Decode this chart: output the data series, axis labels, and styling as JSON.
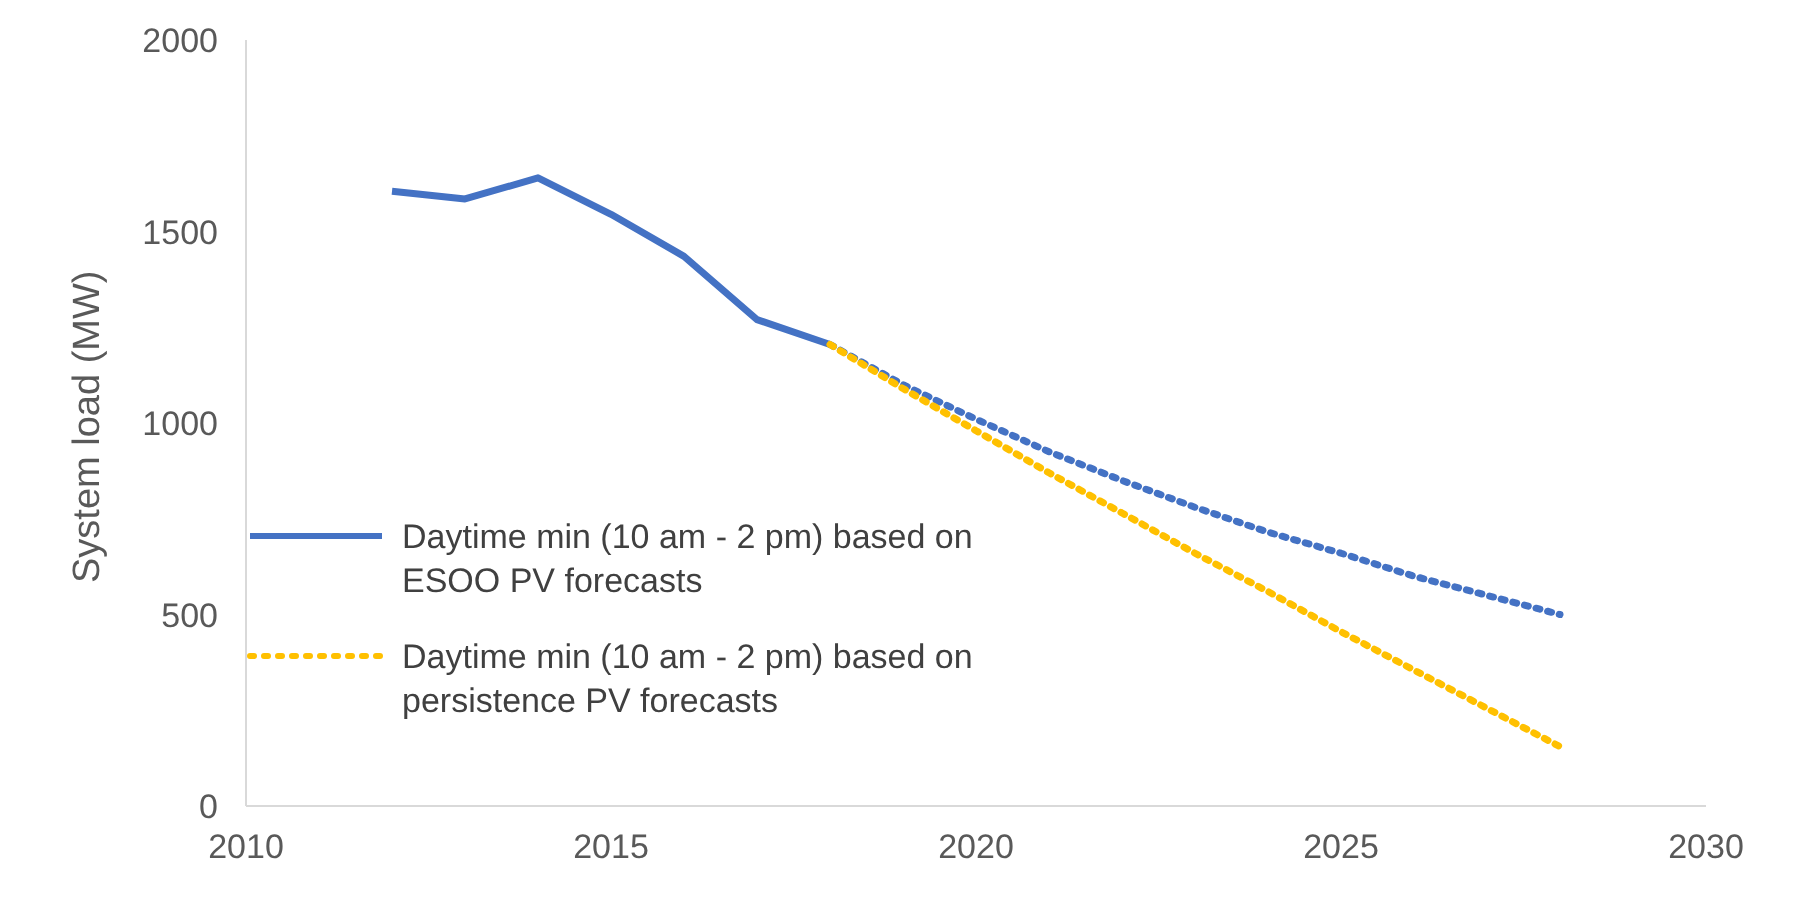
{
  "chart_data": {
    "type": "line",
    "ylabel": "System load (MW)",
    "xlim": [
      2010,
      2030
    ],
    "xticks": [
      2010,
      2015,
      2020,
      2025,
      2030
    ],
    "ylim": [
      0,
      2000
    ],
    "yticks": [
      0,
      500,
      1000,
      1500,
      2000
    ],
    "grid": false,
    "legend": "left",
    "marker": "none",
    "series": [
      {
        "name": "Daytime min (10 am - 2 pm) based on ESOO PV forecasts",
        "color": "#4472c4",
        "line_style": "solid",
        "x": [
          2012,
          2013,
          2014,
          2015,
          2016,
          2017,
          2018
        ],
        "values": [
          1605,
          1585,
          1640,
          1545,
          1435,
          1270,
          1205
        ]
      },
      {
        "color": "#4472c4",
        "line_style": "dotted",
        "x": [
          2018,
          2019,
          2020,
          2021,
          2022,
          2023,
          2024,
          2025,
          2026,
          2027,
          2028
        ],
        "values": [
          1205,
          1100,
          1010,
          925,
          850,
          780,
          715,
          660,
          600,
          550,
          500
        ]
      },
      {
        "name": "Daytime min (10 am - 2 pm) based on persistence PV forecasts",
        "color": "#ffc000",
        "line_style": "dotted",
        "x": [
          2018,
          2019,
          2020,
          2021,
          2022,
          2023,
          2024,
          2025,
          2026,
          2027,
          2028
        ],
        "values": [
          1205,
          1090,
          980,
          870,
          765,
          660,
          560,
          455,
          355,
          255,
          155
        ]
      }
    ]
  }
}
